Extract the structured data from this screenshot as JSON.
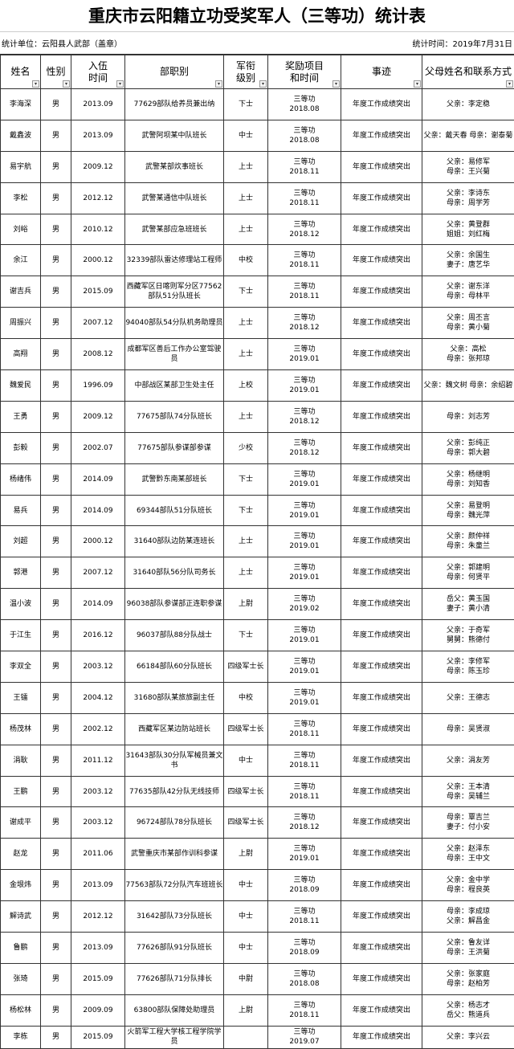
{
  "title": "重庆市云阳籍立功受奖军人（三等功）统计表",
  "unit_label": "统计单位：云阳县人武部（盖章）",
  "date_label": "统计时间：2019年7月31日",
  "headers": [
    "姓名",
    "性别",
    "入伍\n时间",
    "部职别",
    "军衔\n级别",
    "奖励项目\n和时间",
    "事迹",
    "父母姓名和联系方式"
  ],
  "filter_icon": "dropdown-arrow-icon",
  "rows": [
    {
      "name": "李海深",
      "gender": "男",
      "enlist": "2013.09",
      "unit": "77629部队给养员兼出纳",
      "rank": "下士",
      "award": "三等功",
      "award_date": "2018.08",
      "deeds": "年度工作成绩突出",
      "contacts": [
        "父亲：李定稳"
      ]
    },
    {
      "name": "戴鑫波",
      "gender": "男",
      "enlist": "2013.09",
      "unit": "武警阿坝某中队班长",
      "rank": "中士",
      "award": "三等功",
      "award_date": "2018.08",
      "deeds": "年度工作成绩突出",
      "contacts": [
        "父亲：戴天春 母亲：谢泰菊"
      ]
    },
    {
      "name": "易宇航",
      "gender": "男",
      "enlist": "2009.12",
      "unit": "武警某部炊事班长",
      "rank": "上士",
      "award": "三等功",
      "award_date": "2018.11",
      "deeds": "年度工作成绩突出",
      "contacts": [
        "父亲：易修军",
        "母亲：王兴菊"
      ]
    },
    {
      "name": "李松",
      "gender": "男",
      "enlist": "2012.12",
      "unit": "武警某通信中队班长",
      "rank": "上士",
      "award": "三等功",
      "award_date": "2018.11",
      "deeds": "年度工作成绩突出",
      "contacts": [
        "父亲：李诗东",
        "母亲：周学芳"
      ]
    },
    {
      "name": "刘峪",
      "gender": "男",
      "enlist": "2010.12",
      "unit": "武警某部应急班班长",
      "rank": "上士",
      "award": "三等功",
      "award_date": "2018.12",
      "deeds": "年度工作成绩突出",
      "contacts": [
        "父亲：黄登群",
        "姐姐：刘红梅"
      ]
    },
    {
      "name": "余江",
      "gender": "男",
      "enlist": "2000.12",
      "unit": "32339部队雷达修理站工程师",
      "rank": "中校",
      "award": "三等功",
      "award_date": "2018.11",
      "deeds": "年度工作成绩突出",
      "contacts": [
        "父亲：余国生",
        "妻子：唐艺华"
      ]
    },
    {
      "name": "谢吉兵",
      "gender": "男",
      "enlist": "2015.09",
      "unit": "西藏军区日喀则军分区77562部队51分队班长",
      "rank": "下士",
      "award": "三等功",
      "award_date": "2018.11",
      "deeds": "年度工作成绩突出",
      "contacts": [
        "父亲：谢东洋",
        "母亲：母林平"
      ]
    },
    {
      "name": "周振兴",
      "gender": "男",
      "enlist": "2007.12",
      "unit": "94040部队54分队机务助理员",
      "rank": "上士",
      "award": "三等功",
      "award_date": "2018.12",
      "deeds": "年度工作成绩突出",
      "contacts": [
        "父亲：周丕言",
        "母亲：黄小菊"
      ]
    },
    {
      "name": "高翔",
      "gender": "男",
      "enlist": "2008.12",
      "unit": "成都军区善后工作办公室驾驶员",
      "rank": "上士",
      "award": "三等功",
      "award_date": "2019.01",
      "deeds": "年度工作成绩突出",
      "contacts": [
        "父亲：高松",
        "母亲：张邦琼"
      ]
    },
    {
      "name": "魏爱民",
      "gender": "男",
      "enlist": "1996.09",
      "unit": "中部战区某部卫生处主任",
      "rank": "上校",
      "award": "三等功",
      "award_date": "2019.01",
      "deeds": "年度工作成绩突出",
      "contacts": [
        "父亲：魏文树 母亲：余绍碧"
      ]
    },
    {
      "name": "王勇",
      "gender": "男",
      "enlist": "2009.12",
      "unit": "77675部队74分队班长",
      "rank": "上士",
      "award": "三等功",
      "award_date": "2018.12",
      "deeds": "年度工作成绩突出",
      "contacts": [
        "母亲：刘志芳"
      ]
    },
    {
      "name": "彭毅",
      "gender": "男",
      "enlist": "2002.07",
      "unit": "77675部队参谋部参谋",
      "rank": "少校",
      "award": "三等功",
      "award_date": "2018.12",
      "deeds": "年度工作成绩突出",
      "contacts": [
        "父亲：彭纯正",
        "母亲：郭大碧"
      ]
    },
    {
      "name": "杨绪伟",
      "gender": "男",
      "enlist": "2014.09",
      "unit": "武警黔东南某部班长",
      "rank": "下士",
      "award": "三等功",
      "award_date": "2019.01",
      "deeds": "年度工作成绩突出",
      "contacts": [
        "父亲：杨继明",
        "母亲：刘知香"
      ]
    },
    {
      "name": "易兵",
      "gender": "男",
      "enlist": "2014.09",
      "unit": "69344部队51分队班长",
      "rank": "下士",
      "award": "三等功",
      "award_date": "2019.01",
      "deeds": "年度工作成绩突出",
      "contacts": [
        "父亲：易登明",
        "母亲：魏光萍"
      ]
    },
    {
      "name": "刘超",
      "gender": "男",
      "enlist": "2000.12",
      "unit": "31640部队边防某连班长",
      "rank": "上士",
      "award": "三等功",
      "award_date": "2019.01",
      "deeds": "年度工作成绩突出",
      "contacts": [
        "父亲：颜仲祥",
        "母亲：朱童兰"
      ]
    },
    {
      "name": "郭港",
      "gender": "男",
      "enlist": "2007.12",
      "unit": "31640部队56分队司务长",
      "rank": "上士",
      "award": "三等功",
      "award_date": "2019.01",
      "deeds": "年度工作成绩突出",
      "contacts": [
        "父亲：郭建明",
        "母亲：何贤平"
      ]
    },
    {
      "name": "温小波",
      "gender": "男",
      "enlist": "2014.09",
      "unit": "96038部队参谋部正连职参谋",
      "rank": "上尉",
      "award": "三等功",
      "award_date": "2019.02",
      "deeds": "年度工作成绩突出",
      "contacts": [
        "岳父：黄玉国",
        "妻子：黄小清"
      ]
    },
    {
      "name": "于江生",
      "gender": "男",
      "enlist": "2016.12",
      "unit": "96037部队88分队战士",
      "rank": "下士",
      "award": "三等功",
      "award_date": "2019.01",
      "deeds": "年度工作成绩突出",
      "contacts": [
        "父亲：于奇军",
        "舅舅：熊德付"
      ]
    },
    {
      "name": "李双全",
      "gender": "男",
      "enlist": "2003.12",
      "unit": "66184部队60分队班长",
      "rank": "四级军士长",
      "award": "三等功",
      "award_date": "2019.01",
      "deeds": "年度工作成绩突出",
      "contacts": [
        "父亲：李修军",
        "母亲：陈玉珍"
      ]
    },
    {
      "name": "王镭",
      "gender": "男",
      "enlist": "2004.12",
      "unit": "31680部队某旅旅副主任",
      "rank": "中校",
      "award": "三等功",
      "award_date": "2019.01",
      "deeds": "年度工作成绩突出",
      "contacts": [
        "父亲：王德志"
      ]
    },
    {
      "name": "杨茂林",
      "gender": "男",
      "enlist": "2002.12",
      "unit": "西藏军区某边防站班长",
      "rank": "四级军士长",
      "award": "三等功",
      "award_date": "2018.11",
      "deeds": "年度工作成绩突出",
      "contacts": [
        "母亲：吴贤淑"
      ]
    },
    {
      "name": "涓耿",
      "gender": "男",
      "enlist": "2011.12",
      "unit": "31643部队30分队军械员兼文书",
      "rank": "中士",
      "award": "三等功",
      "award_date": "2018.11",
      "deeds": "年度工作成绩突出",
      "contacts": [
        "父亲：涓友芳"
      ]
    },
    {
      "name": "王鹏",
      "gender": "男",
      "enlist": "2003.12",
      "unit": "77635部队42分队无线技师",
      "rank": "四级军士长",
      "award": "三等功",
      "award_date": "2018.11",
      "deeds": "年度工作成绩突出",
      "contacts": [
        "父亲：王本清",
        "母亲：吴辅兰"
      ]
    },
    {
      "name": "谢成平",
      "gender": "男",
      "enlist": "2003.12",
      "unit": "96724部队78分队班长",
      "rank": "四级军士长",
      "award": "三等功",
      "award_date": "2018.12",
      "deeds": "年度工作成绩突出",
      "contacts": [
        "母亲：覃吉兰",
        "妻子：付小安"
      ]
    },
    {
      "name": "赵龙",
      "gender": "男",
      "enlist": "2011.06",
      "unit": "武警重庆市某部作训科参谋",
      "rank": "上尉",
      "award": "三等功",
      "award_date": "2019.01",
      "deeds": "年度工作成绩突出",
      "contacts": [
        "父亲：赵泽东",
        "母亲：王中文"
      ]
    },
    {
      "name": "金垠炜",
      "gender": "男",
      "enlist": "2013.09",
      "unit": "77563部队72分队汽车班班长",
      "rank": "中士",
      "award": "三等功",
      "award_date": "2018.09",
      "deeds": "年度工作成绩突出",
      "contacts": [
        "父亲：金中学",
        "母亲：程良英"
      ]
    },
    {
      "name": "解诗武",
      "gender": "男",
      "enlist": "2012.12",
      "unit": "31642部队73分队班长",
      "rank": "中士",
      "award": "三等功",
      "award_date": "2018.11",
      "deeds": "年度工作成绩突出",
      "contacts": [
        "母亲：李成琼",
        "父亲：解昌金"
      ]
    },
    {
      "name": "鲁鹏",
      "gender": "男",
      "enlist": "2013.09",
      "unit": "77626部队91分队班长",
      "rank": "中士",
      "award": "三等功",
      "award_date": "2018.09",
      "deeds": "年度工作成绩突出",
      "contacts": [
        "父亲：鲁友详",
        "母亲：王洪菊"
      ]
    },
    {
      "name": "张琦",
      "gender": "男",
      "enlist": "2015.09",
      "unit": "77626部队71分队排长",
      "rank": "中尉",
      "award": "三等功",
      "award_date": "2018.08",
      "deeds": "年度工作成绩突出",
      "contacts": [
        "父亲：张家庭",
        "母亲：赵柏芳"
      ]
    },
    {
      "name": "杨松林",
      "gender": "男",
      "enlist": "2009.09",
      "unit": "63800部队保障处助理员",
      "rank": "上尉",
      "award": "三等功",
      "award_date": "2018.11",
      "deeds": "年度工作成绩突出",
      "contacts": [
        "父亲：杨志才",
        "岳父：熊道兵"
      ]
    },
    {
      "name": "李栋",
      "gender": "男",
      "enlist": "2015.09",
      "unit": "火箭军工程大学核工程学院学员",
      "rank": "",
      "award": "三等功",
      "award_date": "2019.07",
      "deeds": "年度工作成绩突出",
      "contacts": [
        "父亲：李兴云"
      ]
    }
  ]
}
